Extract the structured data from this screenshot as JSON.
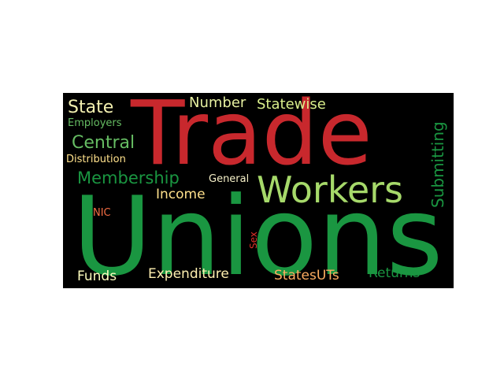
{
  "wordcloud": {
    "background": "#000000",
    "words": [
      {
        "text": "Trade",
        "color": "#c8282d"
      },
      {
        "text": "Unions",
        "color": "#1a9641"
      },
      {
        "text": "Workers",
        "color": "#a6d96a"
      },
      {
        "text": "Membership",
        "color": "#1a9641"
      },
      {
        "text": "Central",
        "color": "#66bd63"
      },
      {
        "text": "State",
        "color": "#f3f0b0"
      },
      {
        "text": "Number",
        "color": "#e6f0a0"
      },
      {
        "text": "Statewise",
        "color": "#d9ef8b"
      },
      {
        "text": "Submitting",
        "color": "#1a9641"
      },
      {
        "text": "Employers",
        "color": "#66bd63"
      },
      {
        "text": "Distribution",
        "color": "#fee08b"
      },
      {
        "text": "Income",
        "color": "#fee08b"
      },
      {
        "text": "General",
        "color": "#f6f0c8"
      },
      {
        "text": "NIC",
        "color": "#f46d43"
      },
      {
        "text": "Sex",
        "color": "#d73027"
      },
      {
        "text": "Funds",
        "color": "#ffffbf"
      },
      {
        "text": "Expenditure",
        "color": "#fff0b0"
      },
      {
        "text": "StatesUTs",
        "color": "#fdae61"
      },
      {
        "text": "Returns",
        "color": "#1a9641"
      }
    ]
  }
}
